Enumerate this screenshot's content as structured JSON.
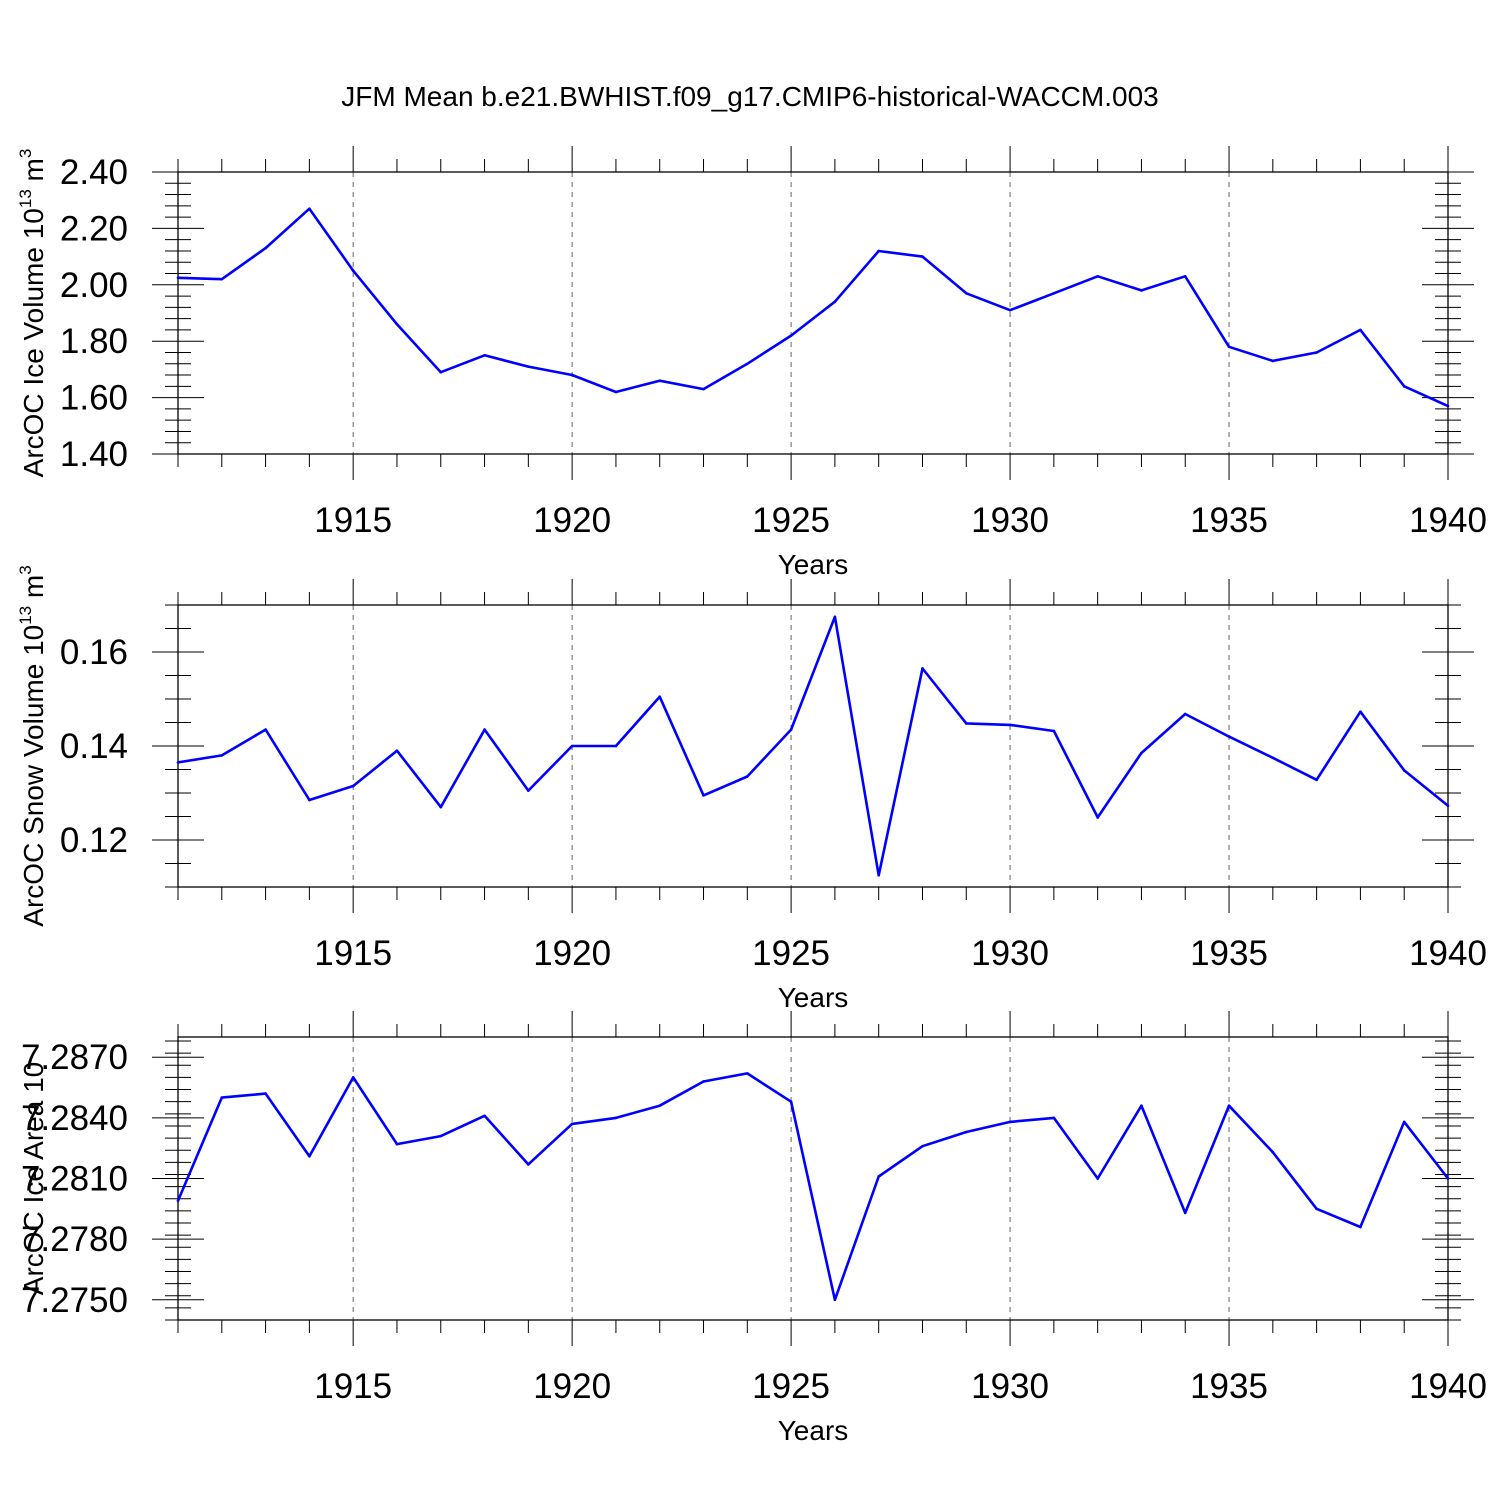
{
  "figure": {
    "title": "JFM Mean b.e21.BWHIST.f09_g17.CMIP6-historical-WACCM.003"
  },
  "colors": {
    "series": "#0000ff",
    "axes": "#000000",
    "grid": "#666666"
  },
  "chart_data": [
    {
      "type": "line",
      "ylabel": "ArcOC Ice Volume 10",
      "ylabel_exp": "13",
      "ylabel_unit": " m",
      "ylabel_unit_exp": "3",
      "xlabel": "Years",
      "xlim": [
        1911,
        1940
      ],
      "ylim": [
        1.4,
        2.4
      ],
      "x_ticks": [
        1915,
        1920,
        1925,
        1930,
        1935,
        1940
      ],
      "y_ticks": [
        1.4,
        1.6,
        1.8,
        2.0,
        2.2,
        2.4
      ],
      "y_tick_labels": [
        "1.40",
        "1.60",
        "1.80",
        "2.00",
        "2.20",
        "2.40"
      ],
      "y_minor": 0.04,
      "grid_x": true,
      "x": [
        1911,
        1912,
        1913,
        1914,
        1915,
        1916,
        1917,
        1918,
        1919,
        1920,
        1921,
        1922,
        1923,
        1924,
        1925,
        1926,
        1927,
        1928,
        1929,
        1930,
        1931,
        1932,
        1933,
        1934,
        1935,
        1936,
        1937,
        1938,
        1939,
        1940
      ],
      "series": [
        {
          "values": [
            2.025,
            2.02,
            2.13,
            2.27,
            2.05,
            1.86,
            1.69,
            1.75,
            1.71,
            1.68,
            1.62,
            1.66,
            1.63,
            1.72,
            1.82,
            1.94,
            2.12,
            2.1,
            1.97,
            1.91,
            1.97,
            2.03,
            1.98,
            2.03,
            1.78,
            1.73,
            1.76,
            1.84,
            1.64,
            1.57
          ]
        }
      ]
    },
    {
      "type": "line",
      "ylabel": "ArcOC Snow Volume 10",
      "ylabel_exp": "13",
      "ylabel_unit": " m",
      "ylabel_unit_exp": "3",
      "xlabel": "Years",
      "xlim": [
        1911,
        1940
      ],
      "ylim": [
        0.11,
        0.17
      ],
      "x_ticks": [
        1915,
        1920,
        1925,
        1930,
        1935,
        1940
      ],
      "y_ticks": [
        0.12,
        0.14,
        0.16
      ],
      "y_tick_labels": [
        "0.12",
        "0.14",
        "0.16"
      ],
      "y_minor": 0.005,
      "grid_x": true,
      "x": [
        1911,
        1912,
        1913,
        1914,
        1915,
        1916,
        1917,
        1918,
        1919,
        1920,
        1921,
        1922,
        1923,
        1924,
        1925,
        1926,
        1927,
        1928,
        1929,
        1930,
        1931,
        1932,
        1933,
        1934,
        1935,
        1936,
        1937,
        1938,
        1939,
        1940
      ],
      "series": [
        {
          "values": [
            0.1365,
            0.138,
            0.1435,
            0.1285,
            0.1315,
            0.139,
            0.127,
            0.1435,
            0.1305,
            0.14,
            0.14,
            0.1505,
            0.1295,
            0.1335,
            0.1435,
            0.1675,
            0.1125,
            0.1565,
            0.1448,
            0.1445,
            0.1432,
            0.1248,
            0.1385,
            0.1468,
            0.142,
            0.1375,
            0.1328,
            0.1473,
            0.1348,
            0.1273
          ]
        }
      ]
    },
    {
      "type": "line",
      "ylabel": "ArcOC Ice Area 10",
      "ylabel_exp": "",
      "ylabel_unit": "",
      "ylabel_unit_exp": "",
      "xlabel": "Years",
      "xlim": [
        1911,
        1940
      ],
      "ylim": [
        7.274,
        7.288
      ],
      "x_ticks": [
        1915,
        1920,
        1925,
        1930,
        1935,
        1940
      ],
      "y_ticks": [
        7.275,
        7.278,
        7.281,
        7.284,
        7.287
      ],
      "y_tick_labels": [
        "7.2750",
        "7.2780",
        "7.2810",
        "7.2840",
        "7.2870"
      ],
      "y_minor": 0.0006,
      "grid_x": true,
      "x": [
        1911,
        1912,
        1913,
        1914,
        1915,
        1916,
        1917,
        1918,
        1919,
        1920,
        1921,
        1922,
        1923,
        1924,
        1925,
        1926,
        1927,
        1928,
        1929,
        1930,
        1931,
        1932,
        1933,
        1934,
        1935,
        1936,
        1937,
        1938,
        1939,
        1940
      ],
      "series": [
        {
          "values": [
            7.2799,
            7.285,
            7.2852,
            7.2821,
            7.286,
            7.2827,
            7.2831,
            7.2841,
            7.2817,
            7.2837,
            7.284,
            7.2846,
            7.2858,
            7.2862,
            7.2848,
            7.275,
            7.2811,
            7.2826,
            7.2833,
            7.2838,
            7.284,
            7.281,
            7.2846,
            7.2793,
            7.2846,
            7.2823,
            7.2795,
            7.2786,
            7.2838,
            7.281
          ]
        }
      ]
    }
  ]
}
